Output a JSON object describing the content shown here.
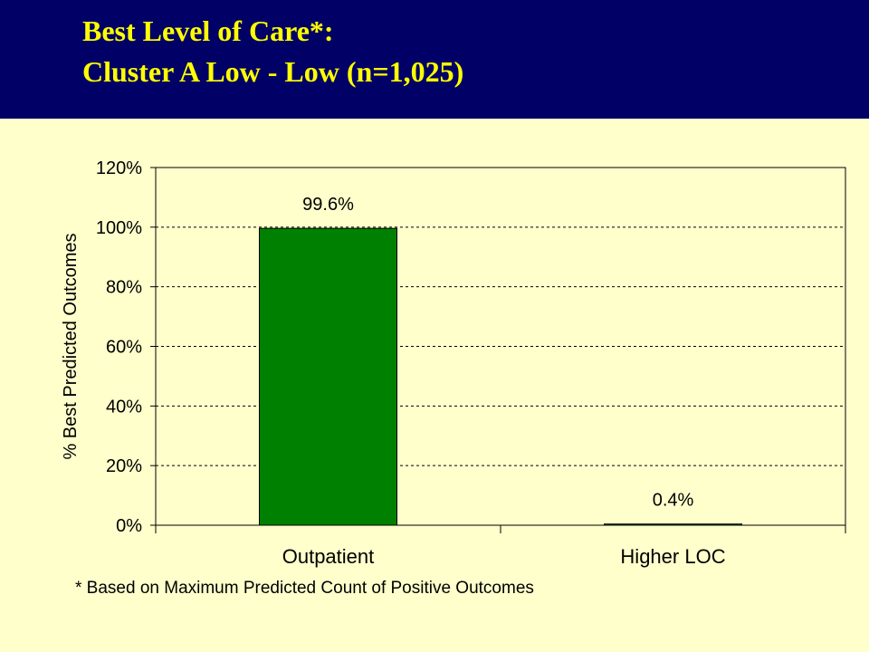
{
  "slide": {
    "title_line1": "Best Level of Care*:",
    "title_line2": "Cluster A Low - Low (n=1,025)",
    "footnote": "* Based on Maximum Predicted Count of Positive Outcomes"
  },
  "colors": {
    "header_bg": "#000066",
    "title_text": "#FFFF00",
    "slide_bg": "#FFFFCC",
    "bar_fill": "#008000"
  },
  "chart_data": {
    "type": "bar",
    "categories": [
      "Outpatient",
      "Higher LOC"
    ],
    "values": [
      99.6,
      0.4
    ],
    "data_labels": [
      "99.6%",
      "0.4%"
    ],
    "ylabel": "% Best Predicted Outcomes",
    "xlabel": "",
    "ylim": [
      0,
      120
    ],
    "yticks": [
      0,
      20,
      40,
      60,
      80,
      100,
      120
    ],
    "ytick_labels": [
      "0%",
      "20%",
      "40%",
      "60%",
      "80%",
      "100%",
      "120%"
    ],
    "grid": true,
    "legend": "none"
  }
}
